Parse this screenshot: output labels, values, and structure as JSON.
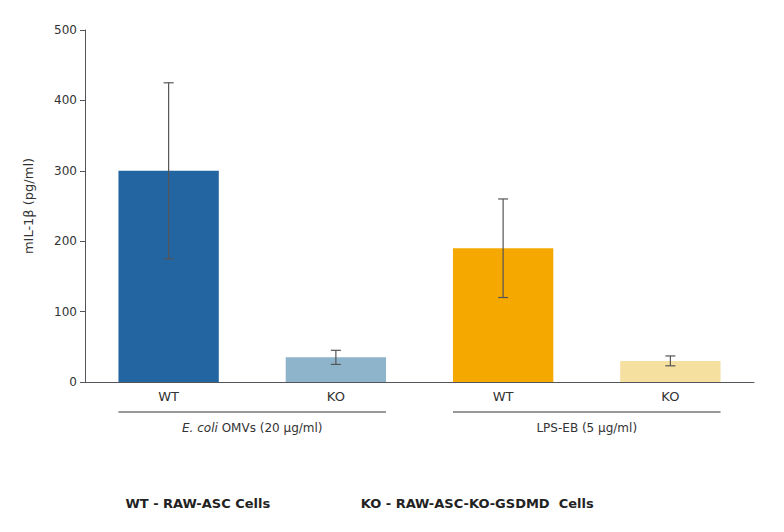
{
  "chart_data": {
    "type": "bar",
    "categories": [
      "WT",
      "KO",
      "WT",
      "KO"
    ],
    "values": [
      300,
      35,
      190,
      30
    ],
    "errors": [
      125,
      10,
      70,
      7
    ],
    "colors": [
      "#2265a0",
      "#8eb4cc",
      "#f5a800",
      "#f5e0a0"
    ],
    "error_color": "#555555",
    "group": [
      "E. coli OMVs (20 μg/ml)",
      "E. coli OMVs (20 μg/ml)",
      "LPS-EB (5 μg/ml)",
      "LPS-EB (5 μg/ml)"
    ],
    "italic": [
      "E. coli"
    ],
    "ylabel": "mIL-1β (pg/ml)",
    "ylim": [
      0,
      500
    ],
    "yticks": [
      0,
      100,
      200,
      300,
      400,
      500
    ],
    "grid": false,
    "annotations": [
      "WT - RAW-ASC Cells",
      "KO - RAW-ASC-KO-GSDMD  Cells"
    ]
  }
}
